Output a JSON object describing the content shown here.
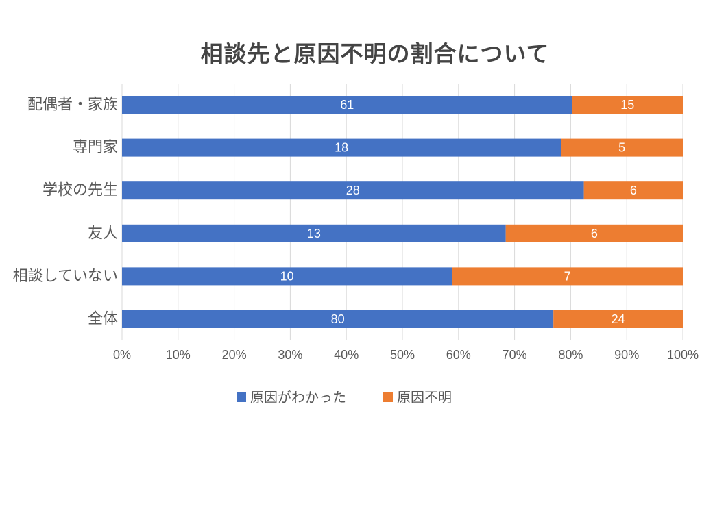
{
  "chart_data": {
    "type": "bar",
    "orientation": "horizontal",
    "stacked": "percent",
    "title": "相談先と原因不明の割合について",
    "categories": [
      "配偶者・家族",
      "専門家",
      "学校の先生",
      "友人",
      "相談していない",
      "全体"
    ],
    "series": [
      {
        "name": "原因がわかった",
        "values": [
          61,
          18,
          28,
          13,
          10,
          80
        ],
        "color": "#4472c4"
      },
      {
        "name": "原因不明",
        "values": [
          15,
          5,
          6,
          6,
          7,
          24
        ],
        "color": "#ed7d31"
      }
    ],
    "x_ticks": [
      "0%",
      "10%",
      "20%",
      "30%",
      "40%",
      "50%",
      "60%",
      "70%",
      "80%",
      "90%",
      "100%"
    ],
    "xlim": [
      0,
      100
    ],
    "grid": true,
    "legend_position": "bottom",
    "data_labels": true
  }
}
